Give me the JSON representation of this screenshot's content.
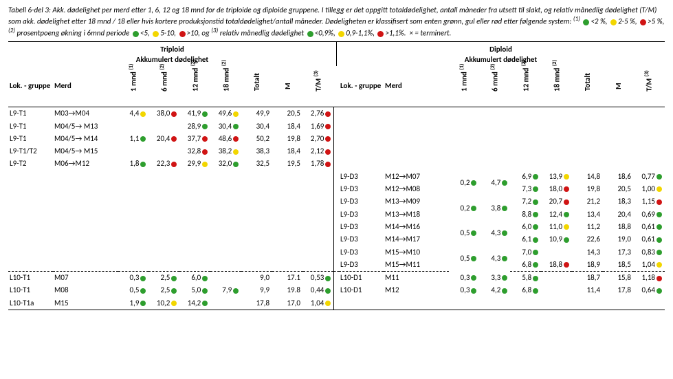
{
  "caption": {
    "title_prefix": "Tabell 6-del 3: ",
    "body1": "Akk. dødelighet per merd etter 1, 6, 12 og 18 mnd for de triploide og diploide gruppene. I tillegg er det oppgitt totaldødelighet, antall måneder fra utsett til slakt, og relativ månedlig dødelighet (T/M) som akk. dødelighet etter 18 mnd / 18 eller hvis kortere produksjonstid totaldødelighet/antall måneder. Dødeligheten er klassifisert som enten grønn, gul eller rød etter følgende system: ",
    "sup1": "(1)",
    "leg1a": "<2 %,",
    "leg1b": "2-5 %,",
    "leg1c": ">5 %,",
    "sup2": "(2)",
    "leg2_pre": "prosentpoeng økning i 6mnd periode",
    "leg2a": "<5,",
    "leg2b": "5-10,",
    "leg2c": ">10, og",
    "sup3": "(3)",
    "leg3_pre": "relativ månedlig dødelighet",
    "leg3a": "<0,9%,",
    "leg3b": "0,9-1,1%,",
    "leg3c": ">1,1%.",
    "tail": "× = terminert."
  },
  "section_headers": {
    "left_top": "Triploid",
    "left_sub": "Akkumulert dødelighet",
    "right_top": "Diploid",
    "right_sub": "Akkumulert dødelighet"
  },
  "col_headers": {
    "lok": "Lok. - gruppe",
    "merd": "Merd",
    "m1": "1 mnd",
    "m6": "6 mnd",
    "m12": "12 mnd",
    "m18": "18 mnd",
    "tot": "Totalt",
    "m": "M",
    "tm": "T/M",
    "s1": "(1)",
    "s2": "(2)",
    "s3": "(3)"
  },
  "colors": {
    "g": "#2e9e2e",
    "y": "#f2d600",
    "r": "#d01414"
  },
  "rows": [
    {
      "l": {
        "lok": "L9-T1",
        "merd": "M03→M04",
        "m1": [
          "4,4",
          "y"
        ],
        "m6": [
          "38,0",
          "r"
        ],
        "m12": [
          "41,9",
          "g"
        ],
        "m18": [
          "49,6",
          "y"
        ],
        "tot": "49,9",
        "m": "20,5",
        "tm": [
          "2,76",
          "r"
        ]
      }
    },
    {
      "l": {
        "lok": "L9-T1",
        "merd": "M04/5→ M13",
        "m12": [
          "28,9",
          "g"
        ],
        "m18": [
          "30,4",
          "g"
        ],
        "tot": "30,4",
        "m": "18,4",
        "tm": [
          "1,69",
          "r"
        ]
      }
    },
    {
      "l": {
        "lok": "L9-T1",
        "merd": "M04/5→ M14",
        "m1": [
          "1,1",
          "g"
        ],
        "m6": [
          "20,4",
          "r"
        ],
        "m12": [
          "37,7",
          "r"
        ],
        "m18": [
          "48,6",
          "r"
        ],
        "tot": "50,2",
        "m": "19,8",
        "tm": [
          "2,70",
          "r"
        ]
      }
    },
    {
      "l": {
        "lok": "L9-T1/T2",
        "merd": "M04/5→ M15",
        "m12": [
          "32,8",
          "r"
        ],
        "m18": [
          "38,2",
          "y"
        ],
        "tot": "38,3",
        "m": "18,4",
        "tm": [
          "2,12",
          "r"
        ]
      }
    },
    {
      "l": {
        "lok": "L9-T2",
        "merd": "M06→M12",
        "m1": [
          "1,8",
          "g"
        ],
        "m6": [
          "22,3",
          "r"
        ],
        "m12": [
          "29,9",
          "y"
        ],
        "m18": [
          "32,0",
          "g"
        ],
        "tot": "32,5",
        "m": "19,5",
        "tm": [
          "1,78",
          "r"
        ]
      }
    },
    {
      "r": {
        "lok": "L9-D3",
        "merd": "M12→M07",
        "m1": [
          "0,2",
          "g",
          "span2"
        ],
        "m6": [
          "4,7",
          "g",
          "span2"
        ],
        "m12": [
          "6,9",
          "g"
        ],
        "m18": [
          "13,9",
          "y"
        ],
        "tot": "14,8",
        "m": "18,6",
        "tm": [
          "0,77",
          "g"
        ]
      }
    },
    {
      "r": {
        "lok": "L9-D3",
        "merd": "M12→M08",
        "m12": [
          "7,3",
          "g"
        ],
        "m18": [
          "18,0",
          "r"
        ],
        "tot": "19,8",
        "m": "20,5",
        "tm": [
          "1,00",
          "y"
        ]
      }
    },
    {
      "r": {
        "lok": "L9-D3",
        "merd": "M13→M09",
        "m1": [
          "0,2",
          "g",
          "span2"
        ],
        "m6": [
          "3,8",
          "g",
          "span2"
        ],
        "m12": [
          "7,2",
          "g"
        ],
        "m18": [
          "20,7",
          "r"
        ],
        "tot": "21,2",
        "m": "18,3",
        "tm": [
          "1,15",
          "r"
        ]
      }
    },
    {
      "r": {
        "lok": "L9-D3",
        "merd": "M13→M18",
        "m12": [
          "8,8",
          "g"
        ],
        "m18": [
          "12,4",
          "g"
        ],
        "tot": "13,4",
        "m": "20,4",
        "tm": [
          "0,69",
          "g"
        ]
      }
    },
    {
      "r": {
        "lok": "L9-D3",
        "merd": "M14→M16",
        "m1": [
          "0,5",
          "g",
          "span2"
        ],
        "m6": [
          "4,3",
          "g",
          "span2"
        ],
        "m12": [
          "6,0",
          "g"
        ],
        "m18": [
          "11,0",
          "y"
        ],
        "tot": "11,2",
        "m": "18,8",
        "tm": [
          "0,61",
          "g"
        ]
      }
    },
    {
      "r": {
        "lok": "L9-D3",
        "merd": "M14→M17",
        "m12": [
          "6,1",
          "g"
        ],
        "m18": [
          "10,9",
          "g"
        ],
        "tot": "22,6",
        "m": "19,0",
        "tm": [
          "0,61",
          "g"
        ]
      }
    },
    {
      "r": {
        "lok": "L9-D3",
        "merd": "M15→M10",
        "m1": [
          "0,5",
          "g",
          "span2"
        ],
        "m6": [
          "4,3",
          "g",
          "span2"
        ],
        "m12": [
          "7,0",
          "g"
        ],
        "tot": "14,3",
        "m": "17,3",
        "tm": [
          "0,83",
          "g"
        ]
      }
    },
    {
      "dash": true,
      "r": {
        "lok": "L9-D3",
        "merd": "M15→M11",
        "m12": [
          "6,8",
          "g"
        ],
        "m18": [
          "18,8",
          "r"
        ],
        "tot": "18,9",
        "m": "18,5",
        "tm": [
          "1,04",
          "y"
        ]
      }
    },
    {
      "l": {
        "lok": "L10-T1",
        "merd": "M07",
        "m1": [
          "0,3",
          "g"
        ],
        "m6": [
          "2,5",
          "g"
        ],
        "m12": [
          "6,0",
          "g"
        ],
        "tot": "9,0",
        "m": "17.1",
        "tm": [
          "0,53",
          "g"
        ]
      },
      "r": {
        "lok": "L10-D1",
        "merd": "M11",
        "m1": [
          "0,3",
          "g"
        ],
        "m6": [
          "3,3",
          "g"
        ],
        "m12": [
          "5,8",
          "g"
        ],
        "tot": "18,7",
        "m": "15,8",
        "tm": [
          "1,18",
          "r"
        ]
      }
    },
    {
      "l": {
        "lok": "L10-T1",
        "merd": "M08",
        "m1": [
          "0,5",
          "g"
        ],
        "m6": [
          "2,5",
          "g"
        ],
        "m12": [
          "5,0",
          "g"
        ],
        "m18": [
          "7,9",
          "g"
        ],
        "tot": "9,9",
        "m": "19.8",
        "tm": [
          "0,44",
          "g"
        ]
      },
      "r": {
        "lok": "L10-D1",
        "merd": "M12",
        "m1": [
          "0,3",
          "g"
        ],
        "m6": [
          "4,2",
          "g"
        ],
        "m12": [
          "6,8",
          "g"
        ],
        "tot": "11,4",
        "m": "17,8",
        "tm": [
          "0,64",
          "g"
        ]
      }
    },
    {
      "end": true,
      "l": {
        "lok": "L10-T1a",
        "merd": "M15",
        "m1": [
          "1,9",
          "g"
        ],
        "m6": [
          "10,2",
          "y"
        ],
        "m12": [
          "14,2",
          "g"
        ],
        "tot": "17,8",
        "m": "17,0",
        "tm": [
          "1,04",
          "y"
        ]
      }
    }
  ]
}
